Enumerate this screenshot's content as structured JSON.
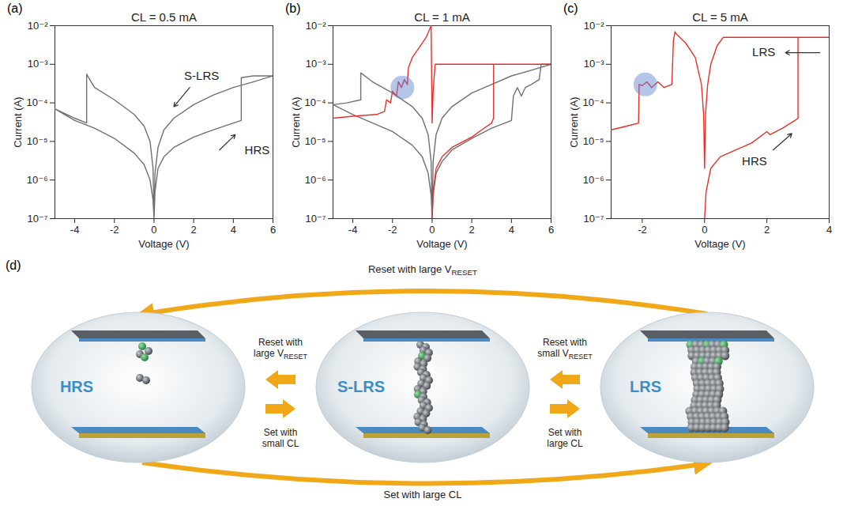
{
  "chart_data": [
    {
      "type": "line",
      "panel": "(a)",
      "title": "CL = 0.5 mA",
      "x_label": "Voltage (V)",
      "y_label": "Current (A)",
      "log": "y",
      "xlim": [
        -5,
        6
      ],
      "xticks": [
        -4,
        -2,
        0,
        2,
        4,
        6
      ],
      "ylim": [
        1e-07,
        0.01
      ],
      "yticks": [
        {
          "value": 1e-07,
          "label": "10⁻⁷"
        },
        {
          "value": 1e-06,
          "label": "10⁻⁶"
        },
        {
          "value": 1e-05,
          "label": "10⁻⁵"
        },
        {
          "value": 0.0001,
          "label": "10⁻⁴"
        },
        {
          "value": 0.001,
          "label": "10⁻³"
        },
        {
          "value": 0.01,
          "label": "10⁻²"
        }
      ],
      "series": [
        {
          "color": "#707070",
          "x": [
            0,
            0.05,
            0.2,
            0.5,
            1,
            2,
            3,
            4,
            4.4,
            4.4,
            5,
            6,
            5,
            4,
            3,
            2,
            1,
            0.5,
            0.2,
            0.05,
            0,
            -0.05,
            -0.2,
            -0.5,
            -1,
            -2,
            -3,
            -3.4,
            -3.4,
            -4,
            -5,
            -4,
            -3,
            -2,
            -1,
            -0.5,
            -0.2,
            -0.05,
            0
          ],
          "values": [
            1e-07,
            5e-07,
            2e-06,
            4e-06,
            7e-06,
            1.3e-05,
            2e-05,
            3e-05,
            3.5e-05,
            0.00045,
            0.0005,
            0.0005,
            0.00035,
            0.00025,
            0.00016,
            9e-05,
            4e-05,
            2e-05,
            7e-06,
            1.5e-06,
            1e-07,
            2e-06,
            1e-05,
            2.5e-05,
            5e-05,
            0.00012,
            0.00025,
            0.00055,
            3e-05,
            4e-05,
            7e-05,
            3.5e-05,
            2.2e-05,
            1.2e-05,
            5e-06,
            2.5e-06,
            1e-06,
            3e-07,
            1e-07
          ]
        }
      ],
      "annotations": [
        {
          "text": "S-LRS",
          "x": 2.4,
          "y": 0.0005,
          "arrow": [
            [
              1.8,
              0.00025
            ],
            [
              1.0,
              8e-05
            ]
          ]
        },
        {
          "text": "HRS",
          "x": 5.2,
          "y": 6e-06,
          "arrow": [
            [
              3.3,
              6e-06
            ],
            [
              4.1,
              1.5e-05
            ]
          ]
        }
      ]
    },
    {
      "type": "line",
      "panel": "(b)",
      "title": "CL = 1 mA",
      "x_label": "Voltage (V)",
      "y_label": "Current (A)",
      "log": "y",
      "xlim": [
        -5,
        6
      ],
      "xticks": [
        -4,
        -2,
        0,
        2,
        4,
        6
      ],
      "ylim": [
        1e-07,
        0.01
      ],
      "yticks": [
        {
          "value": 1e-07,
          "label": "10⁻⁷"
        },
        {
          "value": 1e-06,
          "label": "10⁻⁶"
        },
        {
          "value": 1e-05,
          "label": "10⁻⁵"
        },
        {
          "value": 0.0001,
          "label": "10⁻⁴"
        },
        {
          "value": 0.001,
          "label": "10⁻³"
        },
        {
          "value": 0.01,
          "label": "10⁻²"
        }
      ],
      "series": [
        {
          "color": "#707070",
          "x": [
            0,
            0.05,
            0.2,
            0.5,
            1,
            2,
            3,
            4,
            4.1,
            4.3,
            4.5,
            4.7,
            5,
            5.4,
            5.5,
            6,
            5,
            4,
            3,
            2,
            1,
            0.5,
            0.2,
            0.05,
            0,
            -0.05,
            -0.2,
            -0.5,
            -1,
            -2,
            -3,
            -3.6,
            -3.6,
            -4.3,
            -5,
            -4,
            -3,
            -2,
            -1,
            -0.5,
            -0.2,
            -0.05,
            0
          ],
          "values": [
            1e-07,
            4e-07,
            1.5e-06,
            3e-06,
            6e-06,
            1.2e-05,
            2.2e-05,
            3.5e-05,
            0.00015,
            0.00025,
            0.00015,
            0.00025,
            0.0003,
            0.0004,
            0.001,
            0.001,
            0.0007,
            0.0005,
            0.0003,
            0.00018,
            8e-05,
            4e-05,
            1.5e-05,
            3e-06,
            1e-07,
            3e-06,
            1.5e-05,
            4e-05,
            8e-05,
            0.00018,
            0.00035,
            0.0006,
            0.00012,
            0.0001,
            9e-05,
            5e-05,
            3e-05,
            1.8e-05,
            8e-06,
            4e-06,
            1.5e-06,
            4e-07,
            1e-07
          ]
        },
        {
          "color": "#e8302a",
          "x": [
            0,
            0.05,
            0.2,
            0.5,
            1,
            2,
            2.5,
            3,
            3.1,
            3.1,
            4,
            5,
            6,
            0.3,
            0.15,
            0.05,
            0,
            -0.02,
            -0.05,
            -0.3,
            -0.7,
            -1.0,
            -1.2,
            -1.25,
            -1.4,
            -1.55,
            -1.7,
            -1.8,
            -2.0,
            -2.1,
            -2.3,
            -2.4,
            -2.8,
            -4,
            -5
          ],
          "values": [
            1e-07,
            5e-07,
            2e-06,
            4e-06,
            7e-06,
            1.3e-05,
            2e-05,
            3e-05,
            4e-05,
            0.001,
            0.001,
            0.001,
            0.001,
            0.001,
            0.001,
            0.0002,
            3e-05,
            0.0003,
            0.01,
            0.005,
            0.0025,
            0.0015,
            0.0008,
            0.0003,
            0.0004,
            0.00025,
            0.00035,
            0.00015,
            0.0002,
            0.0001,
            0.00012,
            6e-05,
            5e-05,
            4.5e-05,
            4e-05
          ]
        }
      ],
      "highlight": {
        "x": -1.5,
        "y": 0.00025
      }
    },
    {
      "type": "line",
      "panel": "(c)",
      "title": "CL = 5 mA",
      "x_label": "Voltage (V)",
      "y_label": "Current (A)",
      "log": "y",
      "xlim": [
        -3,
        4
      ],
      "xticks": [
        -2,
        0,
        2,
        4
      ],
      "ylim": [
        1e-07,
        0.01
      ],
      "yticks": [
        {
          "value": 1e-07,
          "label": "10⁻⁷"
        },
        {
          "value": 1e-06,
          "label": "10⁻⁶"
        },
        {
          "value": 1e-05,
          "label": "10⁻⁵"
        },
        {
          "value": 0.0001,
          "label": "10⁻⁴"
        },
        {
          "value": 0.001,
          "label": "10⁻³"
        },
        {
          "value": 0.01,
          "label": "10⁻²"
        }
      ],
      "series": [
        {
          "color": "#e8302a",
          "x": [
            0,
            0.05,
            0.2,
            0.5,
            1,
            1.5,
            2,
            2.1,
            2.5,
            2.9,
            3,
            3,
            3.5,
            4,
            0.6,
            0.4,
            0.2,
            0.1,
            0.03,
            0,
            -0.03,
            -0.1,
            -0.3,
            -0.6,
            -0.9,
            -0.95,
            -1.0,
            -1.05,
            -1.3,
            -1.5,
            -1.7,
            -1.85,
            -2.0,
            -2.1,
            -2.12,
            -2.5,
            -3
          ],
          "values": [
            1e-07,
            5e-07,
            2e-06,
            4e-06,
            6e-06,
            9e-06,
            1.8e-05,
            1.5e-05,
            2.2e-05,
            3.5e-05,
            4e-05,
            0.005,
            0.005,
            0.005,
            0.005,
            0.003,
            0.001,
            0.0003,
            5e-05,
            2e-06,
            5e-05,
            0.0003,
            0.0015,
            0.0035,
            0.006,
            0.007,
            0.004,
            0.0003,
            0.00025,
            0.00035,
            0.00025,
            0.00035,
            0.00028,
            0.0003,
            3e-05,
            2.5e-05,
            2e-05
          ]
        }
      ],
      "highlight": {
        "x": -1.9,
        "y": 0.0003
      },
      "annotations": [
        {
          "text": "LRS",
          "x": 1.9,
          "y": 0.002,
          "arrow": [
            [
              3.7,
              0.002
            ],
            [
              2.6,
              0.002
            ]
          ]
        },
        {
          "text": "HRS",
          "x": 1.6,
          "y": 3e-06,
          "arrow": [
            [
              2.2,
              6e-06
            ],
            [
              2.8,
              1.6e-05
            ]
          ]
        }
      ]
    }
  ],
  "diagram": {
    "panel": "(d)",
    "states": [
      "HRS",
      "S-LRS",
      "LRS"
    ],
    "top_arrow": {
      "text": "Reset with large V",
      "subscript": "RESET"
    },
    "bottom_arrow": {
      "text": "Set with large CL"
    },
    "left_pair": {
      "reset": {
        "text": "Reset with large V",
        "subscript": "RESET"
      },
      "set": {
        "text": "Set with small CL"
      }
    },
    "right_pair": {
      "reset": {
        "text": "Reset with small V",
        "subscript": "RESET"
      },
      "set": {
        "text": "Set with large CL"
      }
    }
  }
}
